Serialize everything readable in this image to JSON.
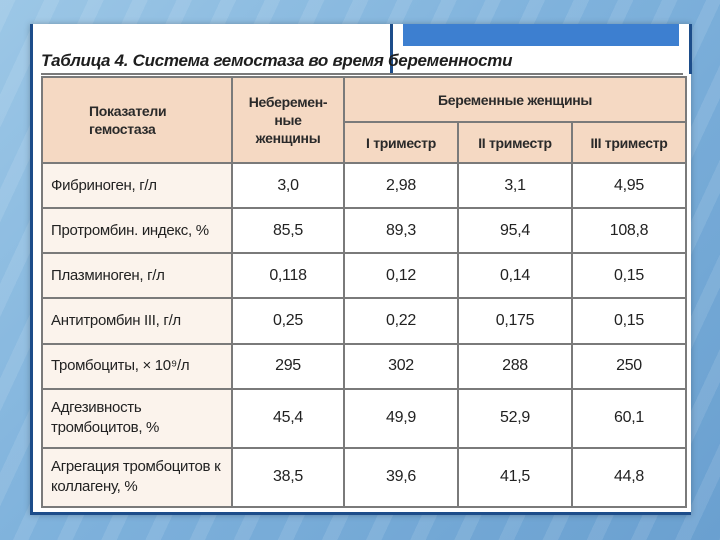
{
  "title": "Таблица 4. Система гемостаза во время беременности",
  "header": {
    "param": "Показатели гемостаза",
    "non_pregnant": "Неберемен- ные женщины",
    "pregnant_group": "Беременные женщины",
    "trimesters": [
      "I триместр",
      "II триместр",
      "III триместр"
    ]
  },
  "rows": [
    {
      "label": "Фибриноген, г/л",
      "values": [
        "3,0",
        "2,98",
        "3,1",
        "4,95"
      ]
    },
    {
      "label": "Протромбин. индекс, %",
      "values": [
        "85,5",
        "89,3",
        "95,4",
        "108,8"
      ]
    },
    {
      "label": "Плазминоген, г/л",
      "values": [
        "0,118",
        "0,12",
        "0,14",
        "0,15"
      ]
    },
    {
      "label": "Антитромбин III, г/л",
      "values": [
        "0,25",
        "0,22",
        "0,175",
        "0,15"
      ]
    },
    {
      "label": "Тромбоциты, × 10⁹/л",
      "values": [
        "295",
        "302",
        "288",
        "250"
      ]
    },
    {
      "label": "Адгезивность тромбоцитов, %",
      "values": [
        "45,4",
        "49,9",
        "52,9",
        "60,1"
      ]
    },
    {
      "label": "Агрегация тромбоцитов к коллагену, %",
      "values": [
        "38,5",
        "39,6",
        "41,5",
        "44,8"
      ]
    }
  ],
  "colors": {
    "header_bg": "#f5d9c3",
    "frame": "#1d4d8a",
    "accent": "#3d7fd0"
  }
}
